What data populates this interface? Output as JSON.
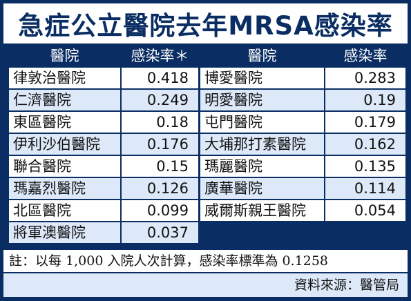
{
  "title": "急症公立醫院去年MRSA感染率",
  "headers": {
    "hospital_left": "醫院",
    "rate_left": "感染率＊",
    "hospital_right": "醫院",
    "rate_right": "感染率"
  },
  "rows": [
    {
      "left_name": "律敦治醫院",
      "left_rate": "0.418",
      "right_name": "博愛醫院",
      "right_rate": "0.283"
    },
    {
      "left_name": "仁濟醫院",
      "left_rate": "0.249",
      "right_name": "明愛醫院",
      "right_rate": "0.19"
    },
    {
      "left_name": "東區醫院",
      "left_rate": "0.18",
      "right_name": "屯門醫院",
      "right_rate": "0.179"
    },
    {
      "left_name": "伊利沙伯醫院",
      "left_rate": "0.176",
      "right_name": "大埔那打素醫院",
      "right_rate": "0.162"
    },
    {
      "left_name": "聯合醫院",
      "left_rate": "0.15",
      "right_name": "瑪麗醫院",
      "right_rate": "0.135"
    },
    {
      "left_name": "瑪嘉烈醫院",
      "left_rate": "0.126",
      "right_name": "廣華醫院",
      "right_rate": "0.114"
    },
    {
      "left_name": "北區醫院",
      "left_rate": "0.099",
      "right_name": "威爾斯親王醫院",
      "right_rate": "0.054"
    },
    {
      "left_name": "將軍澳醫院",
      "left_rate": "0.037",
      "right_name": "",
      "right_rate": ""
    }
  ],
  "note": "註：以每 1,000 入院人次計算，感染率標準為 0.1258",
  "source": "資料來源：醫管局",
  "colors": {
    "navy": "#0a2d63",
    "row_light_blue": "#dde9f8",
    "row_white": "#ffffff"
  }
}
